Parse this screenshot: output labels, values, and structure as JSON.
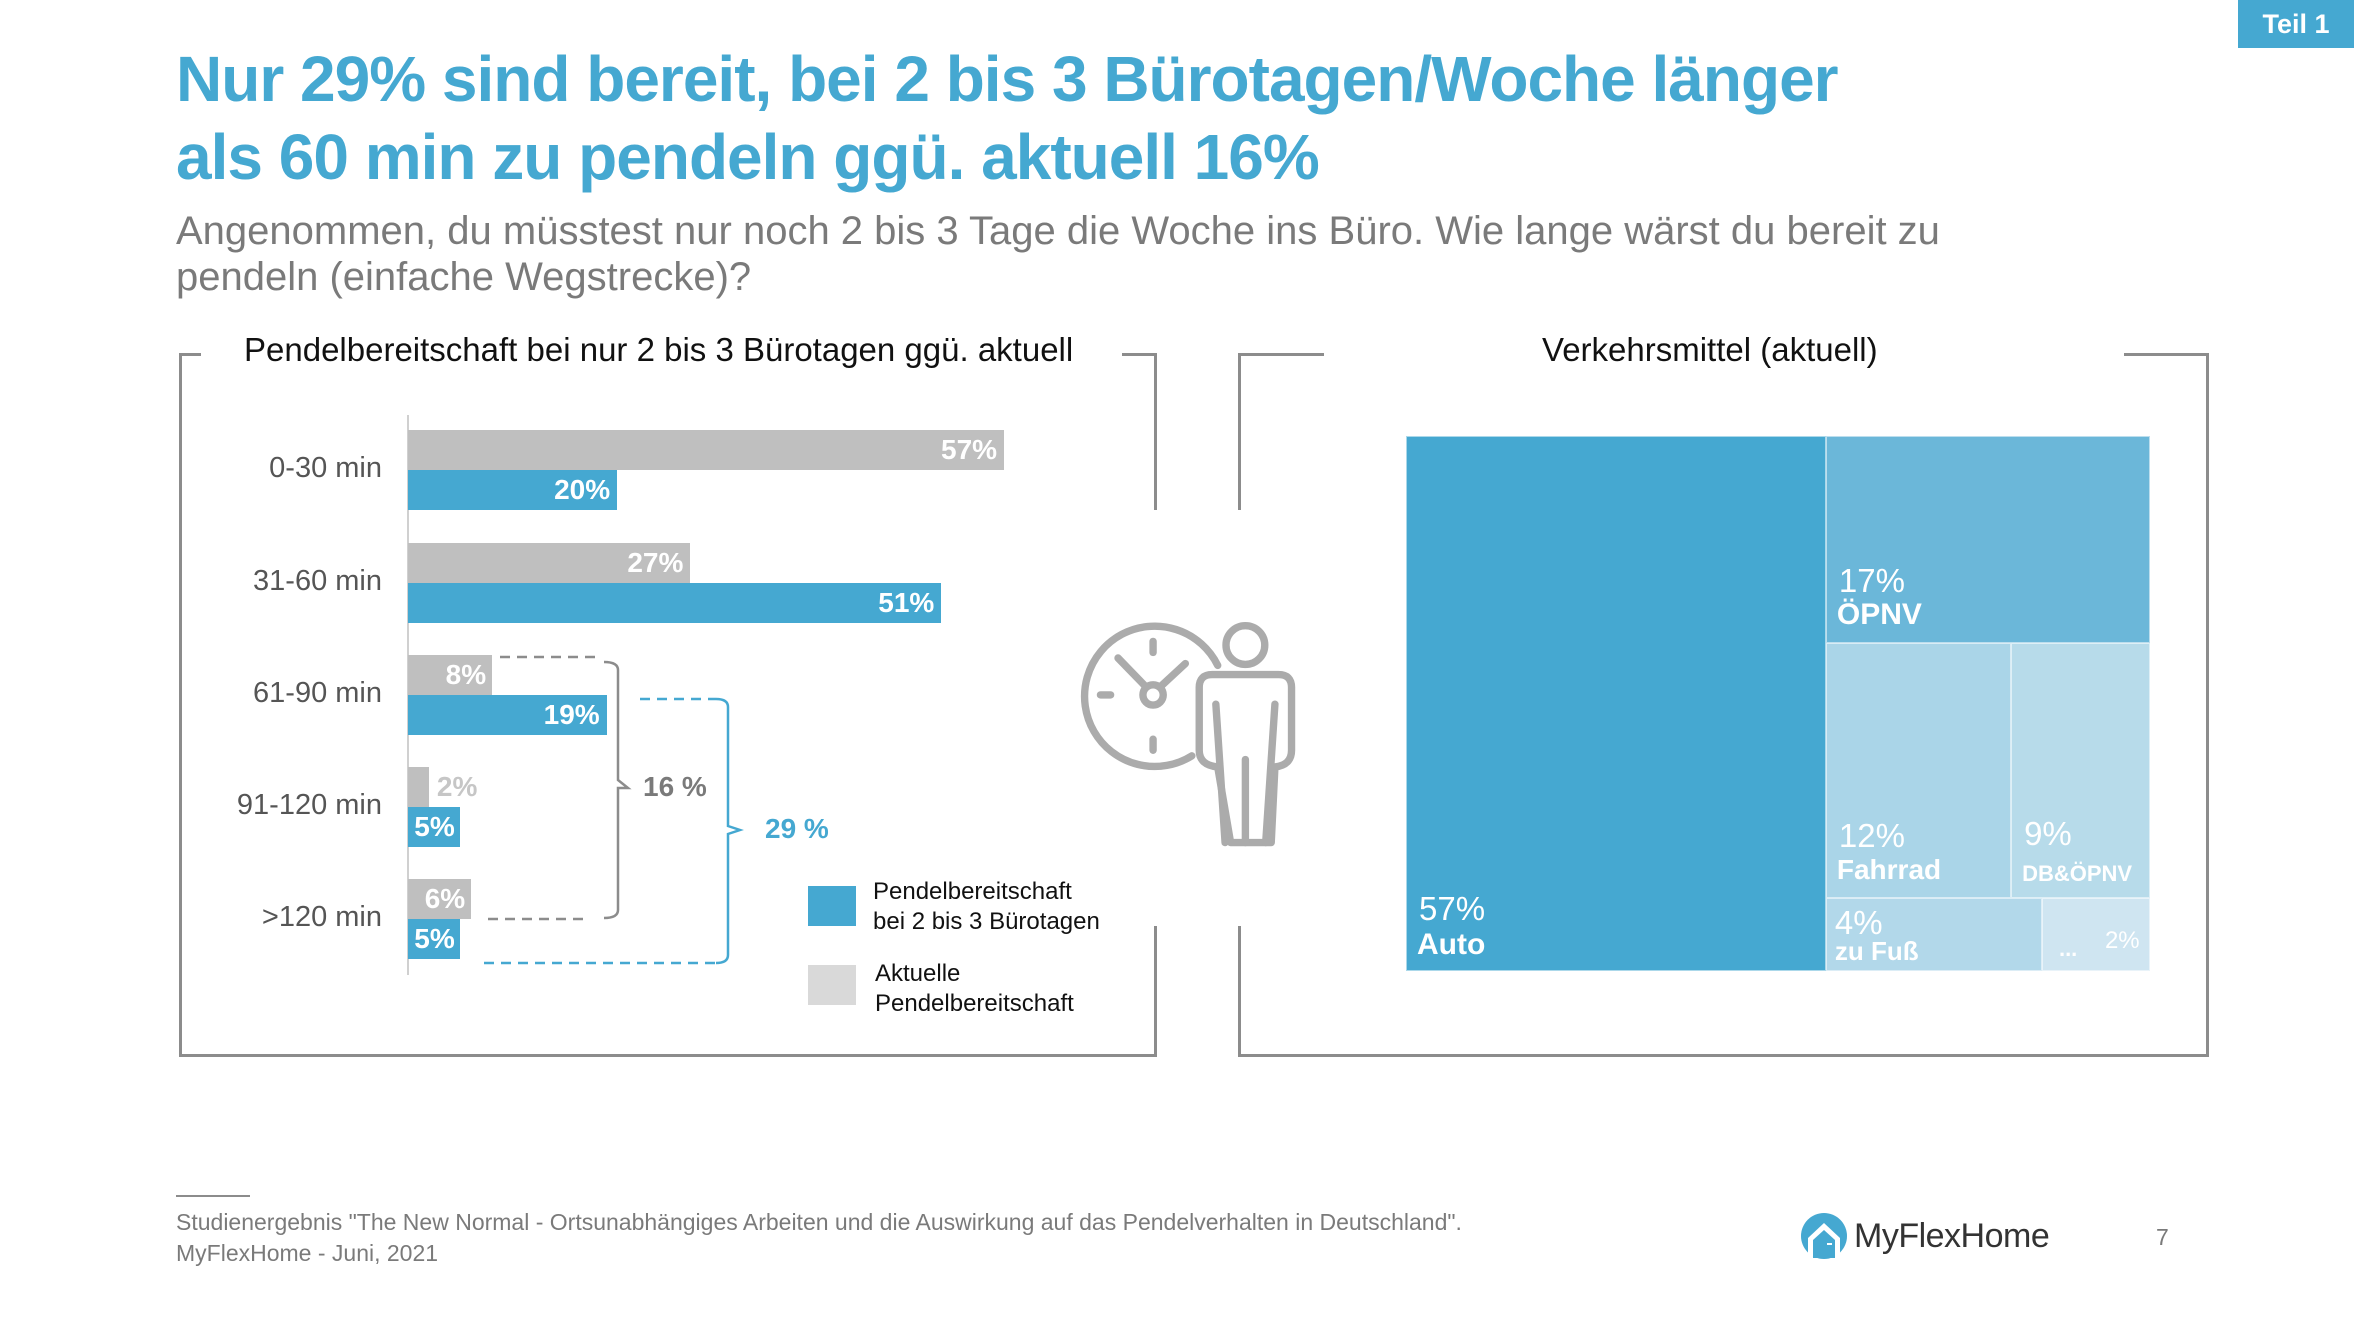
{
  "badge": "Teil 1",
  "headline": {
    "line1": "Nur 29% sind bereit, bei 2 bis 3 Bürotagen/Woche länger",
    "line2": "als 60 min zu pendeln ggü. aktuell 16%"
  },
  "question": {
    "line1": "Angenommen, du müsstest nur noch 2 bis 3 Tage die Woche ins Büro. Wie lange wärst du bereit zu",
    "line2": "pendeln (einfache Wegstrecke)?"
  },
  "colors": {
    "accent": "#45a8d1",
    "current": "#bfbfbf",
    "legend_current": "#d9d9d9",
    "bracket_gray": "#8c8c8c",
    "treemap": [
      "#45a8d1",
      "#6bb7d9",
      "#aad5e8",
      "#b7dbea",
      "#b2d8ea",
      "#cfe5f1"
    ]
  },
  "chart_data": [
    {
      "type": "bar",
      "orientation": "horizontal",
      "title": "Pendelbereitschaft bei nur 2 bis 3 Bürotagen ggü. aktuell",
      "categories": [
        "0-30 min",
        "31-60 min",
        "61-90 min",
        "91-120 min",
        ">120 min"
      ],
      "series": [
        {
          "name": "Aktuelle Pendelbereitschaft",
          "values": [
            57,
            27,
            8,
            2,
            6
          ],
          "labels": [
            "57%",
            "27%",
            "8%",
            "2%",
            "6%"
          ]
        },
        {
          "name": "Pendelbereitschaft bei 2 bis 3 Bürotagen",
          "values": [
            20,
            51,
            19,
            5,
            5
          ],
          "labels": [
            "20%",
            "51%",
            "19%",
            "5%",
            "5%"
          ]
        }
      ],
      "unit": "%",
      "xlim": [
        0,
        60
      ],
      "grid": false,
      "annotations": [
        {
          "text": "16 %",
          "series": "Aktuelle Pendelbereitschaft",
          "categories": [
            "61-90 min",
            "91-120 min",
            ">120 min"
          ]
        },
        {
          "text": "29 %",
          "series": "Pendelbereitschaft bei 2 bis 3 Bürotagen",
          "categories": [
            "61-90 min",
            "91-120 min",
            ">120 min"
          ]
        }
      ],
      "legend": {
        "placement": "bottom-right",
        "items": [
          {
            "line1": "Pendelbereitschaft",
            "line2": "bei 2 bis 3 Bürotagen"
          },
          {
            "line1": "Aktuelle",
            "line2": "Pendelbereitschaft"
          }
        ]
      }
    },
    {
      "type": "treemap",
      "title": "Verkehrsmittel (aktuell)",
      "items": [
        {
          "name": "Auto",
          "value": 57,
          "label": "57%"
        },
        {
          "name": "ÖPNV",
          "value": 17,
          "label": "17%"
        },
        {
          "name": "Fahrrad",
          "value": 12,
          "label": "12%"
        },
        {
          "name": "DB&ÖPNV",
          "value": 9,
          "label": "9%"
        },
        {
          "name": "zu Fuß",
          "value": 4,
          "label": "4%"
        },
        {
          "name": "...",
          "value": 2,
          "label": "2%"
        }
      ],
      "unit": "%"
    }
  ],
  "footer": {
    "line1": "Studienergebnis \"The New Normal - Ortsunabhängiges Arbeiten und die Auswirkung auf das Pendelverhalten in Deutschland\".",
    "line2": "MyFlexHome - Juni, 2021"
  },
  "logo": {
    "text": "MyFlexHome",
    "icon": "house-icon"
  },
  "page_number": "7",
  "illustration": {
    "icon": "clock-person-icon"
  }
}
